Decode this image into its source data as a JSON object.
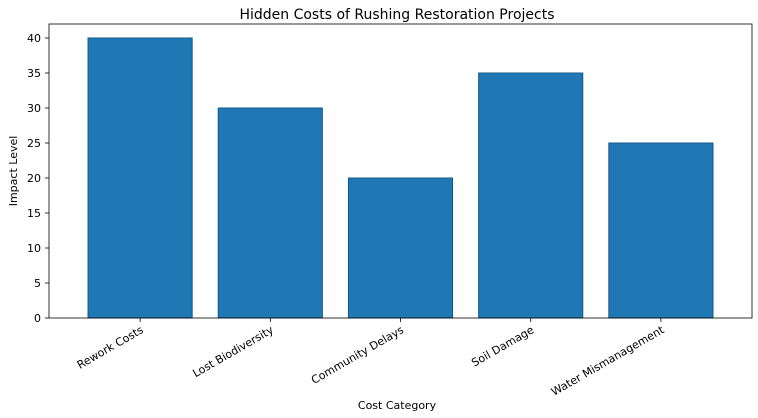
{
  "chart_data": {
    "type": "bar",
    "title": "Hidden Costs of Rushing Restoration Projects",
    "xlabel": "Cost Category",
    "ylabel": "Impact Level",
    "categories": [
      "Rework Costs",
      "Lost Biodiversity",
      "Community Delays",
      "Soil Damage",
      "Water Mismanagement"
    ],
    "values": [
      40,
      30,
      20,
      35,
      25
    ],
    "ylim": [
      0,
      42
    ],
    "yticks": [
      0,
      5,
      10,
      15,
      20,
      25,
      30,
      35,
      40
    ],
    "bar_color": "#1f77b4",
    "bar_edge_color": "#16588a",
    "grid": false,
    "legend": "none"
  }
}
